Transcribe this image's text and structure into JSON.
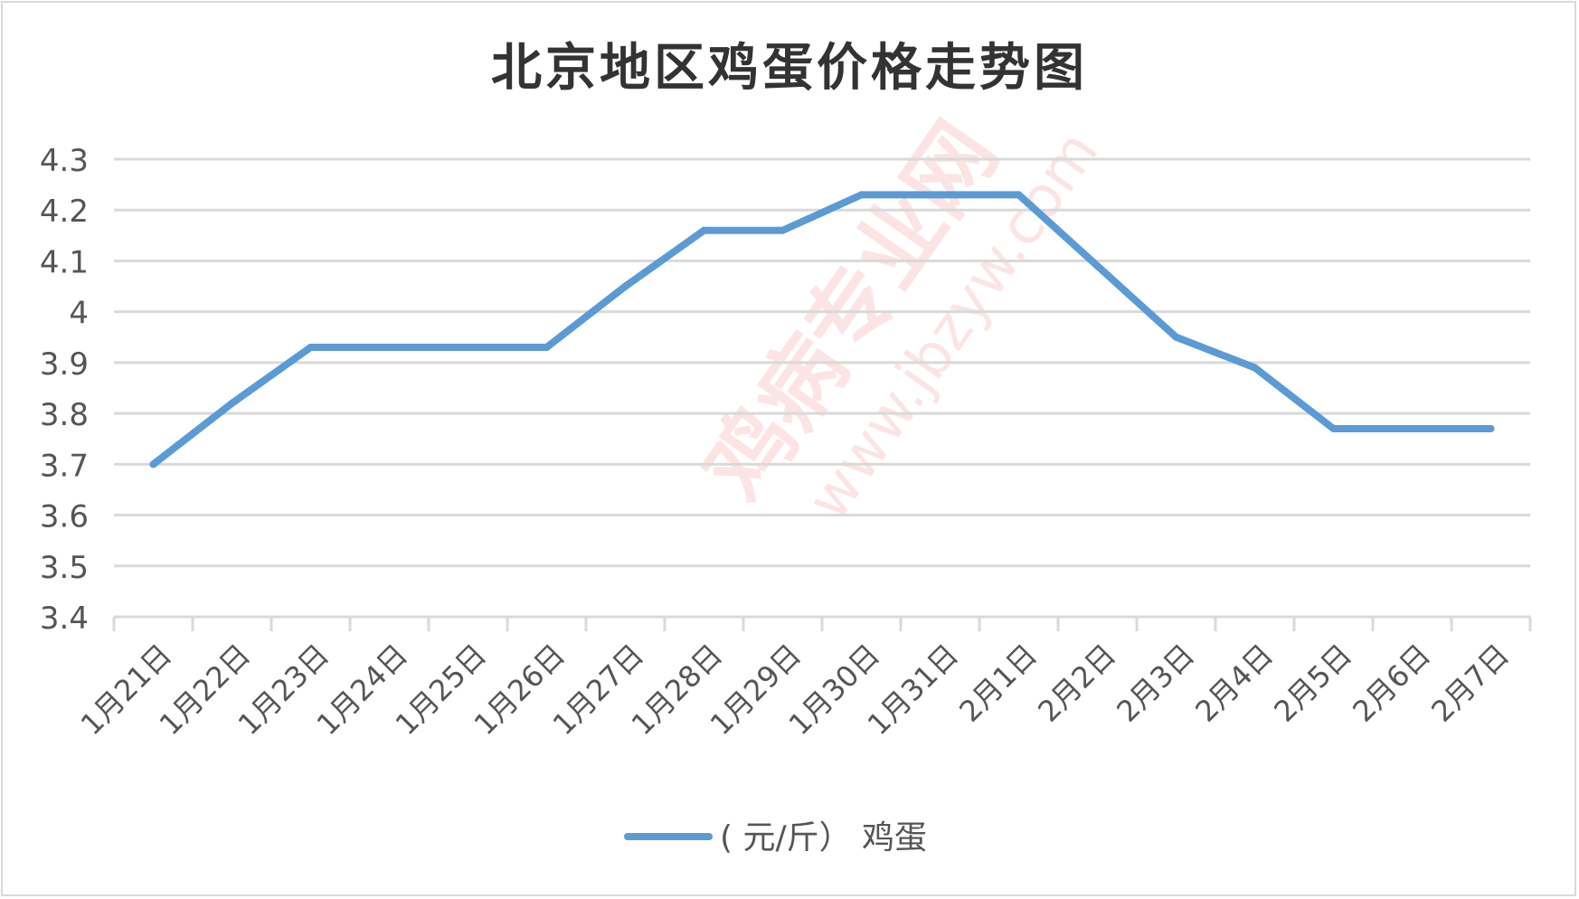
{
  "chart_data": {
    "type": "line",
    "title": "北京地区鸡蛋价格走势图",
    "categories": [
      "1月21日",
      "1月22日",
      "1月23日",
      "1月24日",
      "1月25日",
      "1月26日",
      "1月27日",
      "1月28日",
      "1月29日",
      "1月30日",
      "1月31日",
      "2月1日",
      "2月2日",
      "2月3日",
      "2月4日",
      "2月5日",
      "2月6日",
      "2月7日"
    ],
    "series": [
      {
        "name": "( 元/斤） 鸡蛋",
        "color": "#5b9bd5",
        "values": [
          3.7,
          3.82,
          3.93,
          3.93,
          3.93,
          3.93,
          4.05,
          4.16,
          4.16,
          4.23,
          4.23,
          4.23,
          4.09,
          3.95,
          3.89,
          3.77,
          3.77,
          3.77
        ]
      }
    ],
    "ylim": [
      3.4,
      4.3
    ],
    "yticks": [
      "3.4",
      "3.5",
      "3.6",
      "3.7",
      "3.8",
      "3.9",
      "4",
      "4.1",
      "4.2",
      "4.3"
    ],
    "grid": true,
    "legend": "bottom",
    "xlabel": "",
    "ylabel": ""
  },
  "watermark": "鸡病专业网 www.jbzyw.com"
}
